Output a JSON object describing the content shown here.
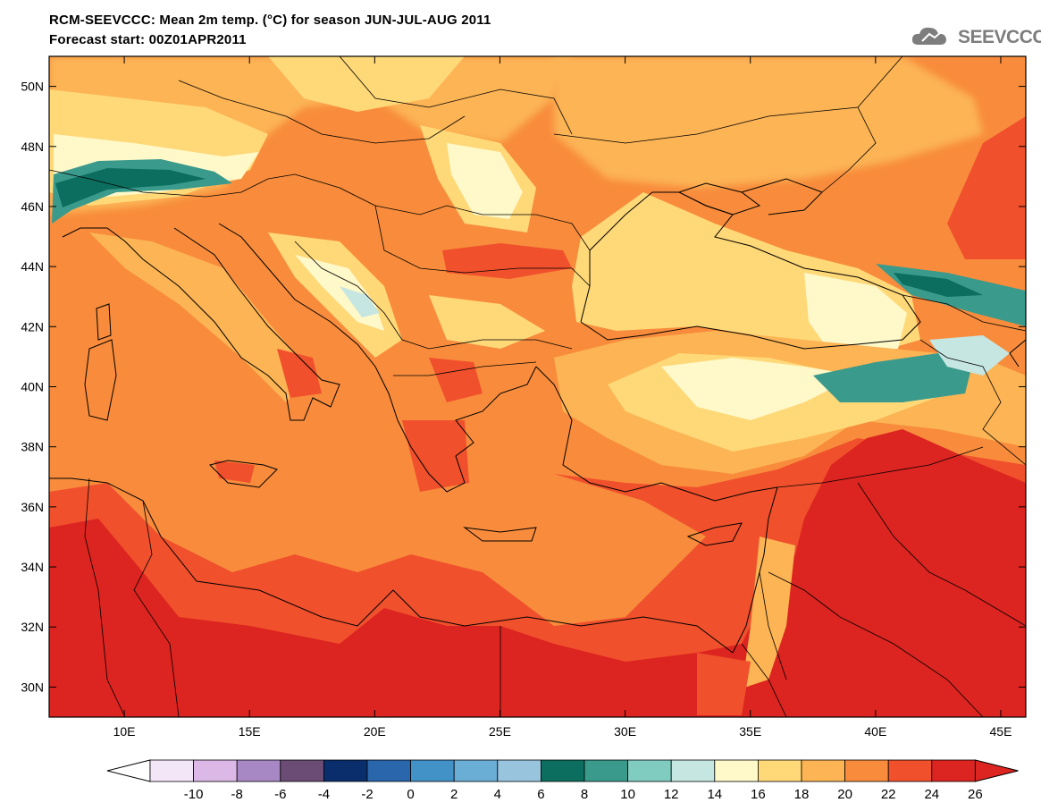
{
  "title_line1": "RCM-SEEVCCC: Mean 2m temp. (°C) for season JUN-JUL-AUG 2011",
  "title_line2": "Forecast start: 00Z01APR2011",
  "logo_text": "SEEVCCC",
  "map": {
    "lon_range": [
      7,
      46
    ],
    "lat_range": [
      29,
      51
    ],
    "lat_ticks": [
      "50N",
      "48N",
      "46N",
      "44N",
      "42N",
      "40N",
      "38N",
      "36N",
      "34N",
      "32N",
      "30N"
    ],
    "lat_tick_values": [
      50,
      48,
      46,
      44,
      42,
      40,
      38,
      36,
      34,
      32,
      30
    ],
    "lon_ticks": [
      "10E",
      "15E",
      "20E",
      "25E",
      "30E",
      "35E",
      "40E",
      "45E"
    ],
    "lon_tick_values": [
      10,
      15,
      20,
      25,
      30,
      35,
      40,
      45
    ]
  },
  "colorbar": {
    "labels": [
      "-10",
      "-8",
      "-6",
      "-4",
      "-2",
      "0",
      "2",
      "4",
      "6",
      "8",
      "10",
      "12",
      "14",
      "16",
      "18",
      "20",
      "22",
      "24",
      "26"
    ],
    "colors": [
      "#f2e6f7",
      "#dcb8e6",
      "#a888c4",
      "#6a4c74",
      "#0a2e6c",
      "#2a66ac",
      "#4292c8",
      "#6aaed6",
      "#98c4de",
      "#0c6e5e",
      "#3a9a8c",
      "#80ccc0",
      "#c6e6e2",
      "#fff8c8",
      "#ffd878",
      "#fcb454",
      "#f88c3c",
      "#f0502c",
      "#dc2420"
    ],
    "lower_arrow_color": "#ffffff",
    "upper_arrow_color": "#dc2420"
  },
  "colors": {
    "land_orange": "#f88c3c",
    "sea": "#f78a3e",
    "hot": "#dc2420",
    "warm": "#f0502c",
    "mild": "#fcb454",
    "cool": "#ffd878",
    "cold": "#fff8c8",
    "pale_blue": "#c6e6e2",
    "teal": "#3a9a8c",
    "dark_teal": "#0c6e5e"
  }
}
